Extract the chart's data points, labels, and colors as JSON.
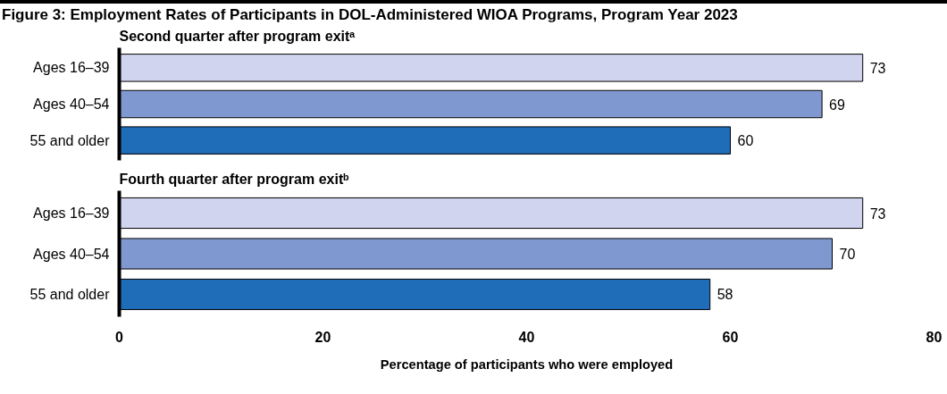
{
  "chart_data": [
    {
      "type": "bar",
      "orientation": "horizontal",
      "title": "Figure 3: Employment Rates of Participants in DOL-Administered WIOA Programs, Program Year 2023",
      "subtitle": "Second quarter after program exitᵃ",
      "categories": [
        "Ages 16–39",
        "Ages 40–54",
        "55 and older"
      ],
      "values": [
        73,
        69,
        60
      ],
      "colors": [
        "#d0d4ee",
        "#7f98d0",
        "#1f6cb8"
      ],
      "xlim": [
        0,
        80
      ],
      "data_labels": true,
      "tick_labels": "y",
      "grid": false
    },
    {
      "type": "bar",
      "orientation": "horizontal",
      "subtitle": "Fourth quarter after program exitᵇ",
      "categories": [
        "Ages 16–39",
        "Ages 40–54",
        "55 and older"
      ],
      "values": [
        73,
        70,
        58
      ],
      "colors": [
        "#d0d4ee",
        "#7f98d0",
        "#1f6cb8"
      ],
      "xlim": [
        0,
        80
      ],
      "xticks": [
        0,
        20,
        40,
        60,
        80
      ],
      "xlabel": "Percentage of participants who were employed",
      "data_labels": true,
      "grid": false
    }
  ]
}
